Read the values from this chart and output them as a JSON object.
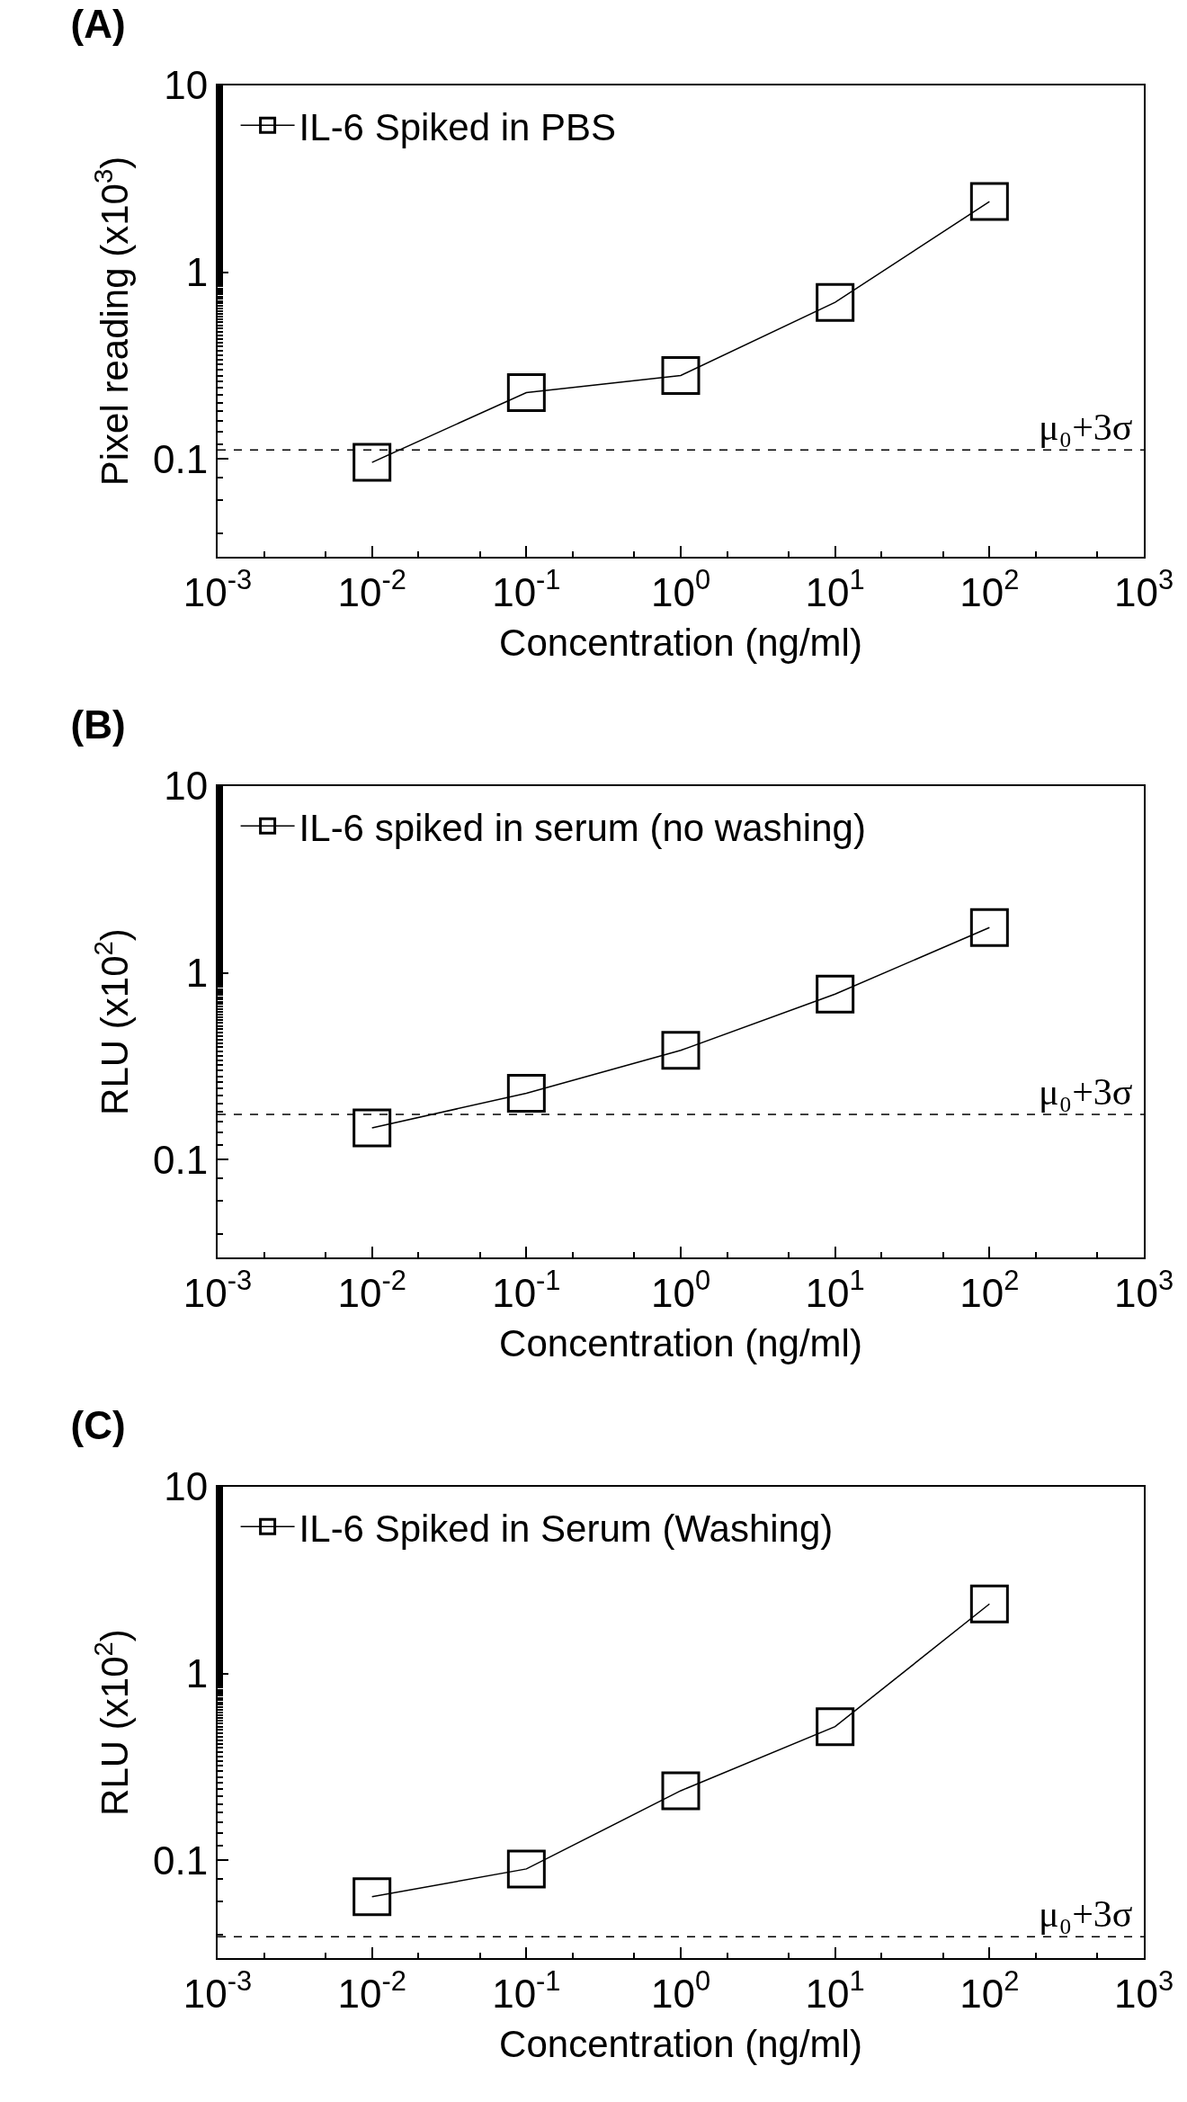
{
  "chart_data": [
    {
      "type": "line",
      "title": "(A)",
      "xlabel": "Concentration (ng/ml)",
      "ylabel": "Pixel reading (x10$^{3}$)",
      "log": "xy",
      "legend": "top left",
      "marker": "square",
      "x": [
        0.01,
        0.1,
        1,
        10,
        100
      ],
      "series": [
        {
          "name": "IL-6 Spiked in PBS",
          "color": "#000000",
          "values": [
            0.096,
            0.227,
            0.28,
            0.69,
            2.39
          ]
        }
      ],
      "xlim": [
        0.001,
        1000
      ],
      "xticks": [
        {
          "value": 0.001,
          "label": "10$^{-3}$"
        },
        {
          "value": 0.01,
          "label": "10$^{-2}$"
        },
        {
          "value": 0.1,
          "label": "10$^{-1}$"
        },
        {
          "value": 1,
          "label": "10$^{0}$"
        },
        {
          "value": 10,
          "label": "10$^{1}$"
        },
        {
          "value": 100,
          "label": "10$^{2}$"
        },
        {
          "value": 1000,
          "label": "10$^{3}$"
        }
      ],
      "ylim": [
        0.03,
        10
      ],
      "yticks": [
        0.1,
        1,
        10
      ],
      "ref_lines": [
        {
          "axis": "y",
          "value": 0.112,
          "label": "μ₀+3σ",
          "line_style": "dashed",
          "color": "#000000"
        }
      ]
    },
    {
      "type": "line",
      "title": "(B)",
      "xlabel": "Concentration (ng/ml)",
      "ylabel": "RLU (x10$^{2}$)",
      "log": "xy",
      "legend": "top left",
      "marker": "square",
      "x": [
        0.01,
        0.1,
        1,
        10,
        100
      ],
      "series": [
        {
          "name": "IL-6 spiked in serum (no washing)",
          "color": "#000000",
          "values": [
            0.148,
            0.227,
            0.385,
            0.77,
            1.75
          ]
        }
      ],
      "xlim": [
        0.001,
        1000
      ],
      "xticks": [
        {
          "value": 0.001,
          "label": "10$^{-3}$"
        },
        {
          "value": 0.01,
          "label": "10$^{-2}$"
        },
        {
          "value": 0.1,
          "label": "10$^{-1}$"
        },
        {
          "value": 1,
          "label": "10$^{0}$"
        },
        {
          "value": 10,
          "label": "10$^{1}$"
        },
        {
          "value": 100,
          "label": "10$^{2}$"
        },
        {
          "value": 1000,
          "label": "10$^{3}$"
        }
      ],
      "ylim": [
        0.03,
        10
      ],
      "yticks": [
        0.1,
        1,
        10
      ],
      "ref_lines": [
        {
          "axis": "y",
          "value": 0.175,
          "label": "μ₀+3σ",
          "line_style": "dashed",
          "color": "#000000"
        }
      ]
    },
    {
      "type": "line",
      "title": "(C)",
      "xlabel": "Concentration (ng/ml)",
      "ylabel": "RLU (x10$^{2}$)",
      "log": "xy",
      "legend": "top left",
      "marker": "square",
      "x": [
        0.01,
        0.1,
        1,
        10,
        100
      ],
      "series": [
        {
          "name": "IL-6 Spiked in Serum (Washing)",
          "color": "#000000",
          "values": [
            0.064,
            0.09,
            0.236,
            0.52,
            2.36
          ]
        }
      ],
      "xlim": [
        0.001,
        1000
      ],
      "xticks": [
        {
          "value": 0.001,
          "label": "10$^{-3}$"
        },
        {
          "value": 0.01,
          "label": "10$^{-2}$"
        },
        {
          "value": 0.1,
          "label": "10$^{-1}$"
        },
        {
          "value": 1,
          "label": "10$^{0}$"
        },
        {
          "value": 10,
          "label": "10$^{1}$"
        },
        {
          "value": 100,
          "label": "10$^{2}$"
        },
        {
          "value": 1000,
          "label": "10$^{3}$"
        }
      ],
      "ylim": [
        0.03,
        10
      ],
      "yticks": [
        0.1,
        1,
        10
      ],
      "ref_lines": [
        {
          "axis": "y",
          "value": 0.039,
          "label": "μ₀+3σ",
          "line_style": "dashed",
          "color": "#000000"
        }
      ]
    }
  ]
}
